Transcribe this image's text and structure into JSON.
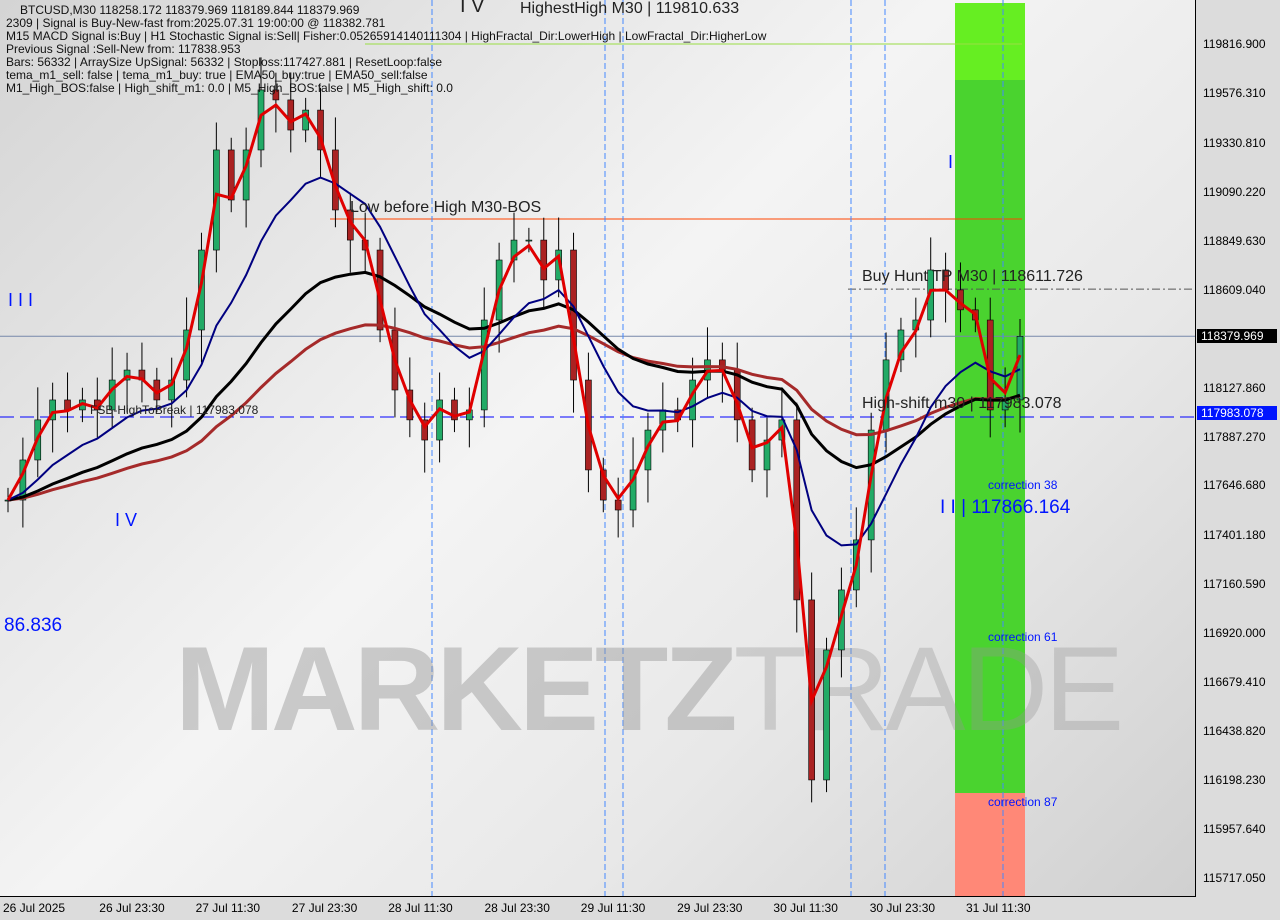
{
  "header": {
    "line1": "BTCUSD,M30  118258.172 118379.969 118189.844 118379.969",
    "line2": "2309 | Signal is Buy-New-fast from:2025.07.31 19:00:00 @ 118382.781",
    "line3": "M15 MACD Signal is:Buy | H1 Stochastic Signal is:Sell| Fisher:0.05265914140111304 | HighFractal_Dir:LowerHigh | LowFractal_Dir:HigherLow",
    "line4": "Previous Signal :Sell-New from: 117838.953",
    "line5": "Bars: 56332 | ArraySize UpSignal: 56332 | Stoploss:117427.881 | ResetLoop:false",
    "line6": "tema_m1_sell: false | tema_m1_buy: true | EMA50_buy:true | EMA50_sell:false",
    "line7": "M1_High_BOS:false | High_shift_m1: 0.0 | M5_High_BOS:false | M5_High_shift: 0.0"
  },
  "annotations": {
    "highest_high": "HighestHigh   M30 | 119810.633",
    "low_before_high": "Low before High   M30-BOS",
    "buy_hunt_tp": "Buy Hunt TP M30 | 118611.726",
    "high_shift": "High-shift m30 | 117983.078",
    "fsb": "FSB-HighToBreak | 117983.078",
    "wave_iv_top": "I V",
    "wave_iii": "I I I",
    "wave_iv": "I V",
    "wave_i": "I",
    "wave_ii": "I I | 117866.164",
    "left_value": "86.836",
    "correction_38": "correction 38",
    "correction_61": "correction 61",
    "correction_87": "correction 87"
  },
  "watermark": {
    "bold": "MARKETZ",
    "light": "TRADE"
  },
  "colors": {
    "accent_zone": "#44cc33",
    "bright_zone": "#66ee22",
    "red_zone": "#ff8877",
    "ema_red": "#e00000",
    "ma_navy": "#000080",
    "ma_black": "#000000",
    "ma_brown": "#a52a2a",
    "level_blue": "#0000ff"
  },
  "chart_data": {
    "type": "candlestick",
    "symbol": "BTCUSD",
    "timeframe": "M30",
    "ylim": [
      115600,
      120000
    ],
    "y_ticks": [
      "119816.900",
      "119576.310",
      "119330.810",
      "119090.220",
      "118849.630",
      "118609.040",
      "118127.860",
      "117887.270",
      "117646.680",
      "117401.180",
      "117160.590",
      "116920.000",
      "116679.410",
      "116438.820",
      "116198.230",
      "115957.640",
      "115717.050"
    ],
    "x_ticks": [
      "26 Jul 2025",
      "26 Jul 23:30",
      "27 Jul 11:30",
      "27 Jul 23:30",
      "28 Jul 11:30",
      "28 Jul 23:30",
      "29 Jul 11:30",
      "29 Jul 23:30",
      "30 Jul 11:30",
      "30 Jul 23:30",
      "31 Jul 11:30"
    ],
    "current_price": "118379.969",
    "level_price": "117983.078",
    "closes": [
      117575,
      117772,
      117969,
      118067,
      118018,
      118067,
      118018,
      118165,
      118214,
      118165,
      118067,
      118165,
      118411,
      118804,
      119296,
      119050,
      119296,
      119591,
      119542,
      119394,
      119492,
      119296,
      119001,
      118853,
      118804,
      118411,
      118116,
      117969,
      117870,
      118067,
      117969,
      118018,
      118460,
      118755,
      118853,
      118853,
      118657,
      118804,
      118165,
      117723,
      117575,
      117526,
      117723,
      117919,
      118018,
      117969,
      118165,
      118264,
      118214,
      117969,
      117723,
      117870,
      117969,
      117084,
      116199,
      116838,
      117133,
      117379,
      117919,
      118264,
      118411,
      118460,
      118706,
      118608,
      118510,
      118460,
      118018,
      118067,
      118380
    ]
  }
}
